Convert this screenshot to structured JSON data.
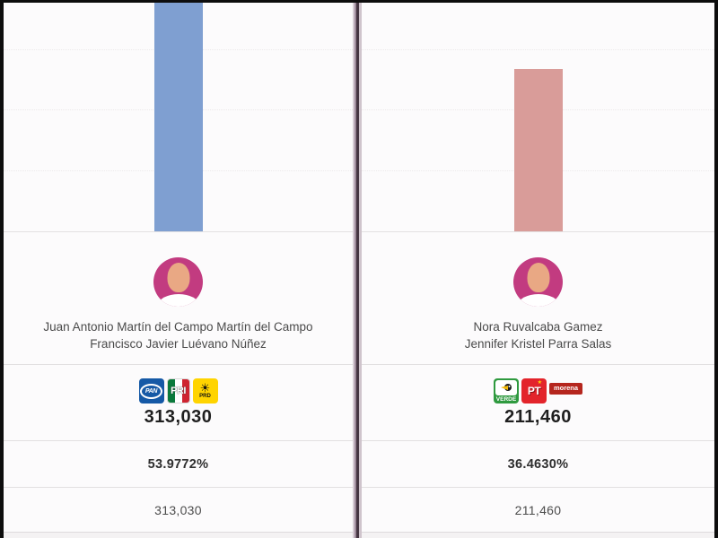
{
  "chart_data": {
    "type": "bar",
    "title": "",
    "xlabel": "",
    "ylabel": "",
    "categories": [
      "Juan Antonio Martín del Campo Martín del Campo / Francisco Javier Luévano Núñez",
      "Nora Ruvalcaba Gamez / Jennifer Kristel Parra Salas"
    ],
    "values": [
      313030,
      211460
    ],
    "percentages": [
      53.9772,
      36.463
    ],
    "bar_colors": [
      "#7f9fd1",
      "#d99c99"
    ],
    "grid": "horizontal dotted gridlines, no axis labels visible",
    "note": "left bar is clipped by the top edge of the visible chart area"
  },
  "candidates": [
    {
      "name_line1": "Juan Antonio Martín del Campo Martín del Campo",
      "name_line2": "Francisco Javier Luévano Núñez",
      "parties": [
        {
          "label": "PAN"
        },
        {
          "label": "PRI"
        },
        {
          "label": "PRD"
        }
      ],
      "votes_headline": "313,030",
      "percentage": "53.9772%",
      "votes_detail": "313,030",
      "bar_color": "#7f9fd1"
    },
    {
      "name_line1": "Nora Ruvalcaba Gamez",
      "name_line2": "Jennifer Kristel Parra Salas",
      "parties": [
        {
          "label": "VERDE"
        },
        {
          "label": "PT"
        },
        {
          "label": "morena"
        }
      ],
      "votes_headline": "211,460",
      "percentage": "36.4630%",
      "votes_detail": "211,460",
      "bar_color": "#d99c99"
    }
  ],
  "icons": {
    "prd_sun": "☀",
    "pt_star": "★"
  }
}
